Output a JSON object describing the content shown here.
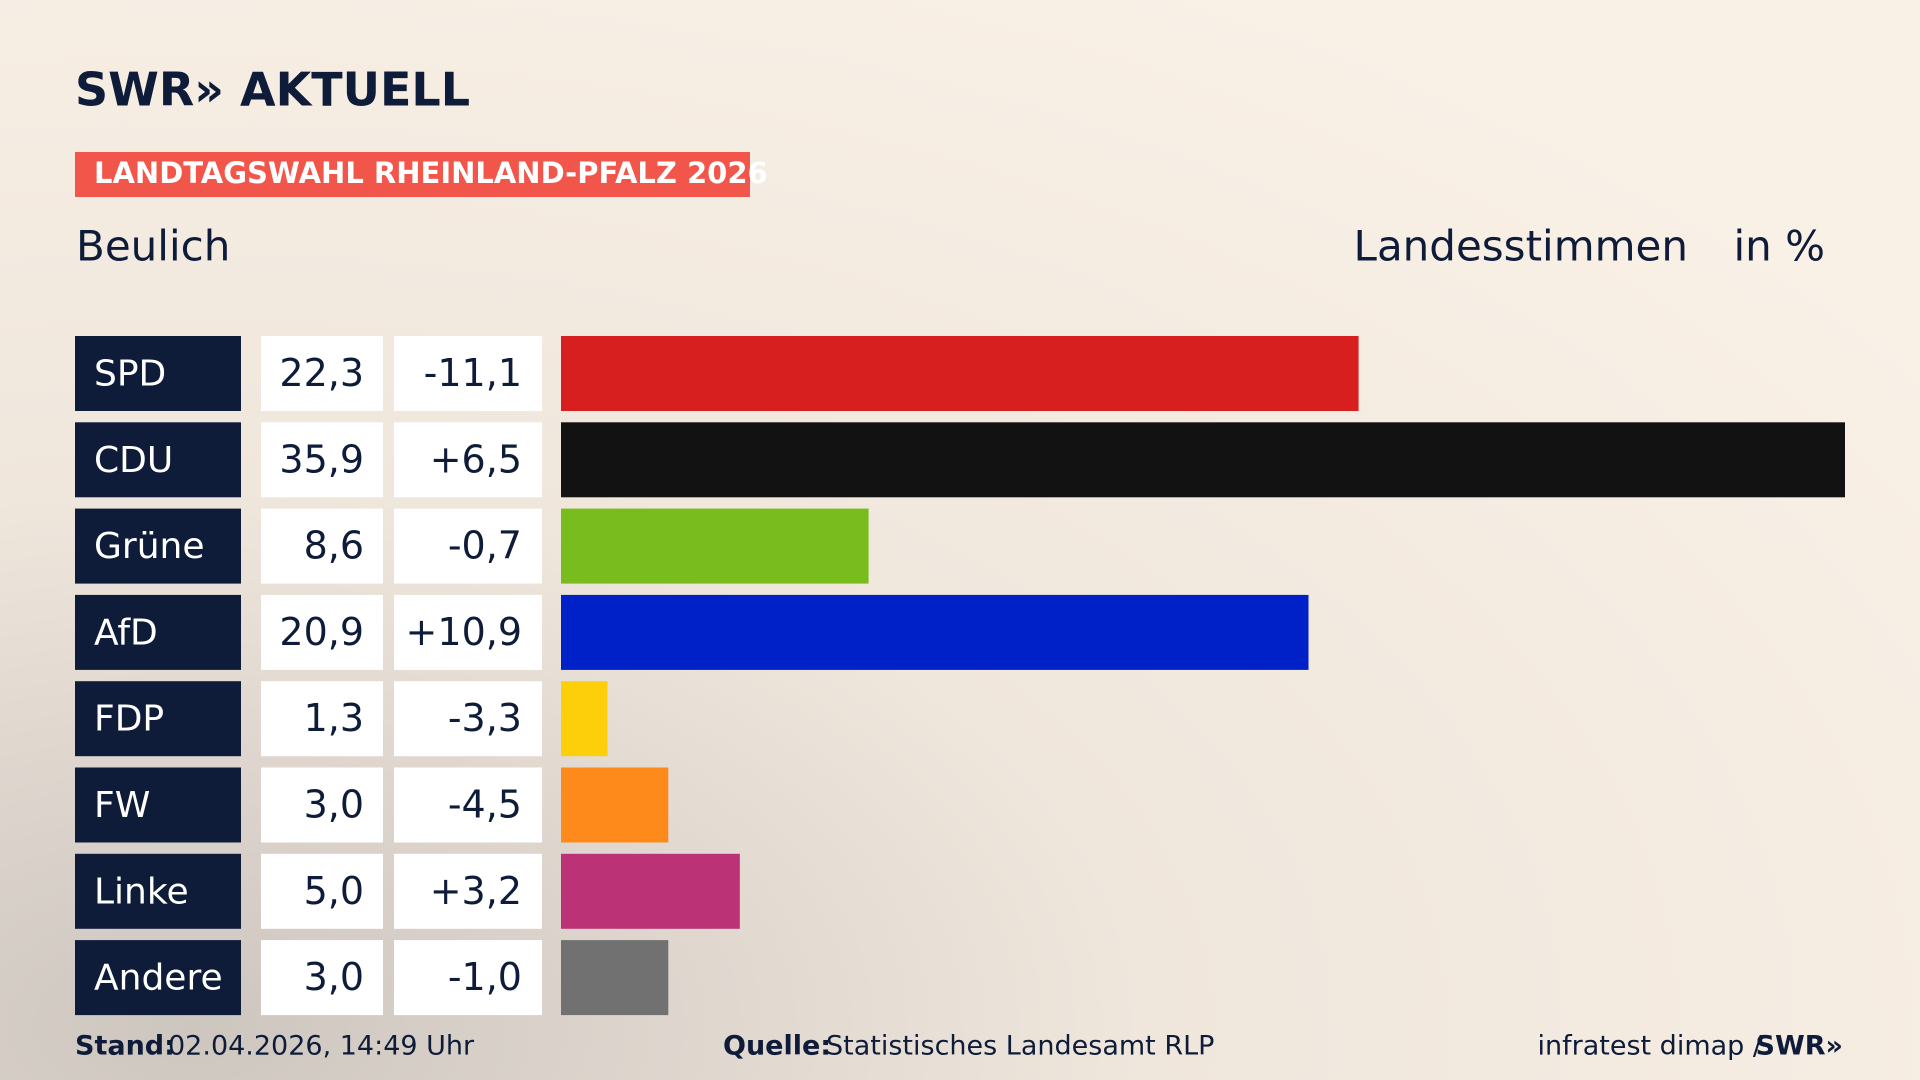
{
  "brand": "SWR» AKTUELL",
  "tag": "LANDTAGSWAHL RHEINLAND-PFALZ 2026",
  "chart_data": {
    "type": "bar",
    "orientation": "horizontal",
    "title": "Beulich",
    "measure": "Landesstimmen",
    "unit": "in %",
    "categories": [
      "SPD",
      "CDU",
      "Grüne",
      "AfD",
      "FDP",
      "FW",
      "Linke",
      "Andere"
    ],
    "colors": [
      "#d81f1f",
      "#121212",
      "#79bc1e",
      "#0020c8",
      "#fdce0a",
      "#fd8a1a",
      "#bb3277",
      "#717171"
    ],
    "values": [
      22.3,
      35.9,
      8.6,
      20.9,
      1.3,
      3.0,
      5.0,
      3.0
    ],
    "value_labels": [
      "22,3",
      "35,9",
      "8,6",
      "20,9",
      "1,3",
      "3,0",
      "5,0",
      "3,0"
    ],
    "changes": [
      -11.1,
      6.5,
      -0.7,
      10.9,
      -3.3,
      -4.5,
      3.2,
      -1.0
    ],
    "change_labels": [
      "-11,1",
      "+6,5",
      "-0,7",
      "+10,9",
      "-3,3",
      "-4,5",
      "+3,2",
      "-1,0"
    ]
  },
  "footer": {
    "stand_label": "Stand:",
    "stand": "02.04.2026, 14:49 Uhr",
    "source_label": "Quelle:",
    "source": "Statistisches Landesamt RLP",
    "credit": "infratest dimap /",
    "credit_brand": "SWR»"
  }
}
